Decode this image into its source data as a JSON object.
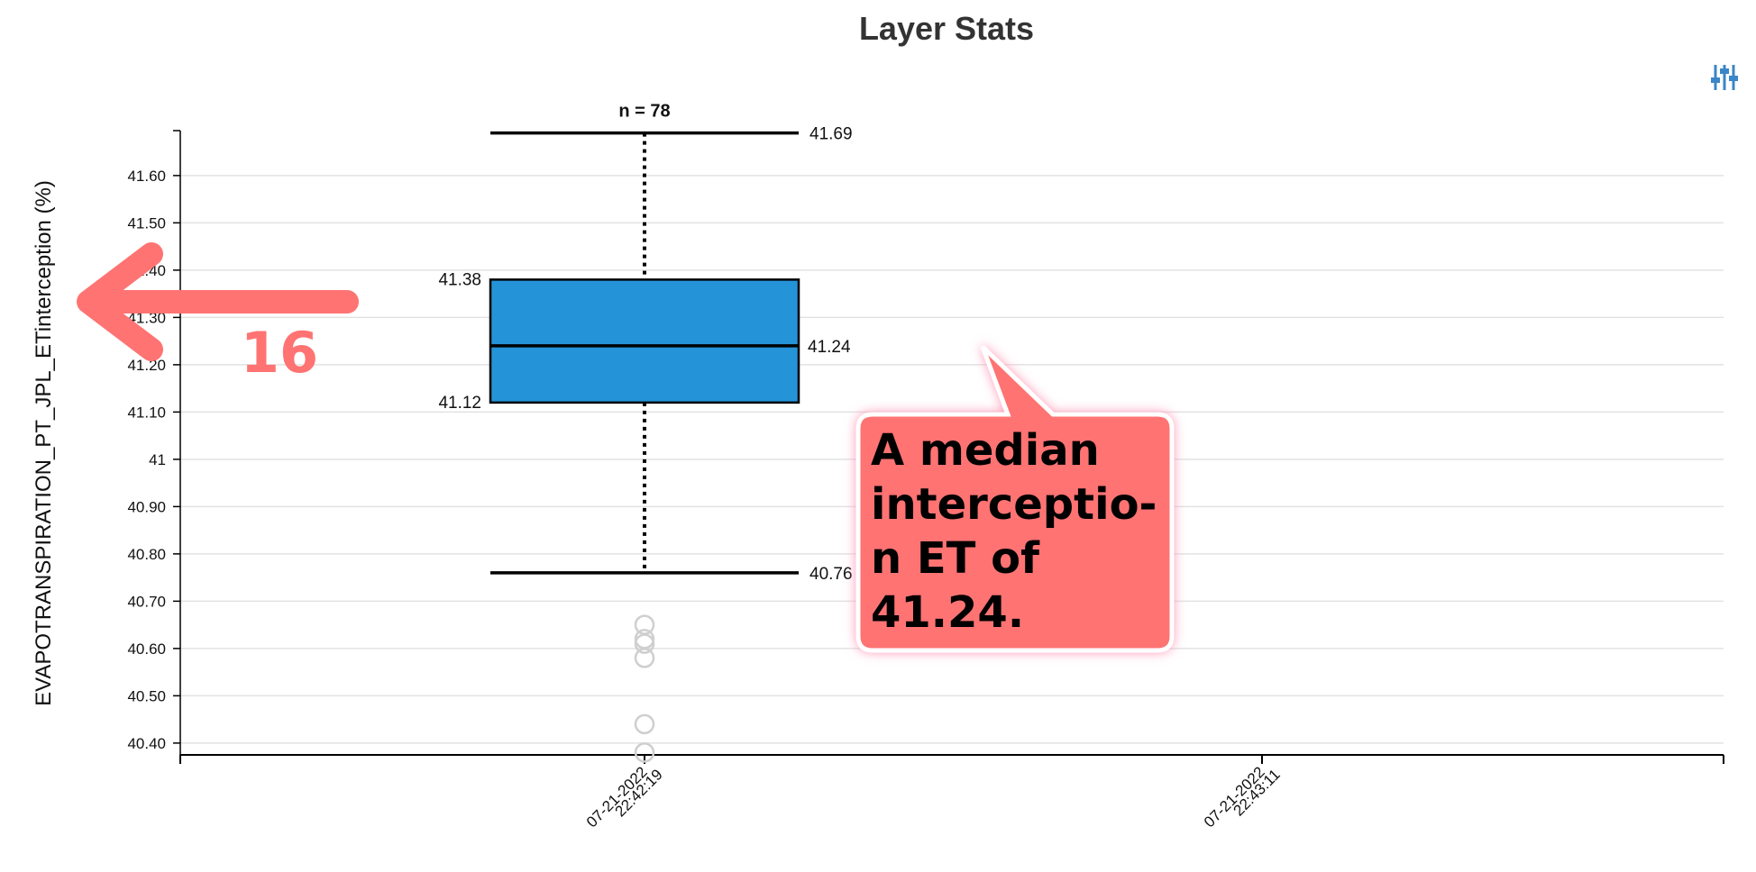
{
  "chart_data": {
    "type": "box",
    "title": "Layer Stats",
    "ylabel": "EVAPOTRANSPIRATION_PT_JPL_ETinterception (%)",
    "xlabel": "",
    "ylim": [
      40.375,
      41.695
    ],
    "y_ticks": [
      "40.40",
      "40.50",
      "40.60",
      "40.70",
      "40.80",
      "40.90",
      "41",
      "41.10",
      "41.20",
      "41.30",
      "41.40",
      "41.50",
      "41.60"
    ],
    "y_tick_values": [
      40.4,
      40.5,
      40.6,
      40.7,
      40.8,
      40.9,
      41.0,
      41.1,
      41.2,
      41.3,
      41.4,
      41.5,
      41.6
    ],
    "x_ticks": [
      {
        "line1": "07-21-2022",
        "line2": "22:42:19"
      },
      {
        "line1": "07-21-2022",
        "line2": "22:43:11"
      }
    ],
    "grid": true,
    "boxes": [
      {
        "category_index": 0,
        "n_label": "n = 78",
        "whisker_high": 41.69,
        "whisker_high_label": "41.69",
        "q3": 41.38,
        "q3_label": "41.38",
        "median": 41.24,
        "median_label": "41.24",
        "q1": 41.12,
        "q1_label": "41.12",
        "whisker_low": 40.76,
        "whisker_low_label": "40.76",
        "outliers": [
          40.65,
          40.62,
          40.61,
          40.58,
          40.44,
          40.38
        ]
      }
    ],
    "box_color": "#2593d8"
  },
  "annotations": {
    "arrow_number": "16",
    "callout_text": "A median interceptio-n ET of 41.24.",
    "accent_color": "#ff7373"
  },
  "toolbar": {
    "settings_icon": "sliders-icon"
  }
}
